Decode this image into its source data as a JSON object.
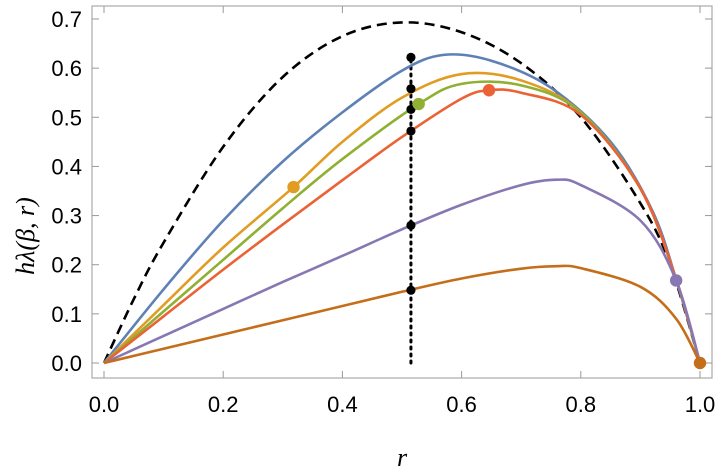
{
  "chart_data": {
    "type": "line",
    "xlabel": "r",
    "ylabel": "hλ(β, r)",
    "xlim": [
      0,
      1
    ],
    "ylim": [
      0,
      0.7
    ],
    "xticks": [
      0.0,
      0.2,
      0.4,
      0.6,
      0.8,
      1.0
    ],
    "yticks": [
      0.0,
      0.1,
      0.2,
      0.3,
      0.4,
      0.5,
      0.6,
      0.7
    ],
    "xtick_labels": [
      "0.0",
      "0.2",
      "0.4",
      "0.6",
      "0.8",
      "1.0"
    ],
    "ytick_labels": [
      "0.0",
      "0.1",
      "0.2",
      "0.3",
      "0.4",
      "0.5",
      "0.6",
      "0.7"
    ],
    "vertical_line": {
      "x": 0.515,
      "style": "dotted",
      "color": "#000000"
    },
    "series": [
      {
        "color": "#000000",
        "style": "dashed",
        "x": [
          0,
          0.05,
          0.1,
          0.2,
          0.3,
          0.4,
          0.5,
          0.6,
          0.7,
          0.8,
          0.9,
          0.95,
          1.0
        ],
        "y": [
          0,
          0.13,
          0.245,
          0.44,
          0.582,
          0.665,
          0.693,
          0.673,
          0.61,
          0.5,
          0.325,
          0.2,
          0
        ]
      },
      {
        "color": "#5E81B5",
        "style": "solid",
        "x": [
          0,
          0.1,
          0.2,
          0.3,
          0.4,
          0.5,
          0.57,
          0.65,
          0.75,
          0.85,
          0.92,
          0.96,
          1.0
        ],
        "y": [
          0,
          0.15,
          0.29,
          0.41,
          0.51,
          0.595,
          0.627,
          0.615,
          0.56,
          0.45,
          0.31,
          0.17,
          0
        ]
      },
      {
        "color": "#E19C24",
        "style": "solid",
        "x": [
          0,
          0.1,
          0.2,
          0.318,
          0.4,
          0.5,
          0.6,
          0.7,
          0.8,
          0.9,
          0.96,
          1.0
        ],
        "y": [
          0,
          0.118,
          0.235,
          0.358,
          0.45,
          0.54,
          0.588,
          0.575,
          0.51,
          0.355,
          0.17,
          0
        ]
      },
      {
        "color": "#8FB032",
        "style": "solid",
        "x": [
          0,
          0.1,
          0.2,
          0.3,
          0.4,
          0.528,
          0.6,
          0.7,
          0.8,
          0.9,
          0.96,
          1.0
        ],
        "y": [
          0,
          0.105,
          0.21,
          0.315,
          0.415,
          0.527,
          0.568,
          0.565,
          0.51,
          0.355,
          0.17,
          0
        ]
      },
      {
        "color": "#EB6235",
        "style": "solid",
        "x": [
          0,
          0.1,
          0.2,
          0.3,
          0.4,
          0.5,
          0.6,
          0.646,
          0.7,
          0.8,
          0.9,
          0.96,
          1.0
        ],
        "y": [
          0,
          0.095,
          0.19,
          0.282,
          0.372,
          0.46,
          0.538,
          0.555,
          0.55,
          0.505,
          0.355,
          0.17,
          0
        ]
      },
      {
        "color": "#8778B3",
        "style": "solid",
        "x": [
          0,
          0.1,
          0.2,
          0.3,
          0.4,
          0.5,
          0.6,
          0.7,
          0.76,
          0.8,
          0.9,
          0.96,
          1.0
        ],
        "y": [
          0,
          0.055,
          0.11,
          0.165,
          0.218,
          0.272,
          0.322,
          0.362,
          0.373,
          0.362,
          0.29,
          0.168,
          0
        ]
      },
      {
        "color": "#C56E1A",
        "style": "solid",
        "x": [
          0,
          0.1,
          0.2,
          0.3,
          0.4,
          0.5,
          0.6,
          0.7,
          0.76,
          0.8,
          0.9,
          0.96,
          1.0
        ],
        "y": [
          0,
          0.029,
          0.058,
          0.087,
          0.116,
          0.145,
          0.172,
          0.192,
          0.197,
          0.193,
          0.155,
          0.09,
          0
        ]
      }
    ],
    "black_points": [
      {
        "x": 0.515,
        "y": 0.622
      },
      {
        "x": 0.515,
        "y": 0.558
      },
      {
        "x": 0.515,
        "y": 0.516
      },
      {
        "x": 0.515,
        "y": 0.472
      },
      {
        "x": 0.515,
        "y": 0.28
      },
      {
        "x": 0.515,
        "y": 0.148
      }
    ],
    "colored_points": [
      {
        "x": 0.318,
        "y": 0.358,
        "color": "#E19C24"
      },
      {
        "x": 0.528,
        "y": 0.527,
        "color": "#8FB032"
      },
      {
        "x": 0.646,
        "y": 0.555,
        "color": "#EB6235"
      },
      {
        "x": 0.96,
        "y": 0.168,
        "color": "#8778B3"
      },
      {
        "x": 1.0,
        "y": 0.0,
        "color": "#C56E1A"
      }
    ]
  }
}
